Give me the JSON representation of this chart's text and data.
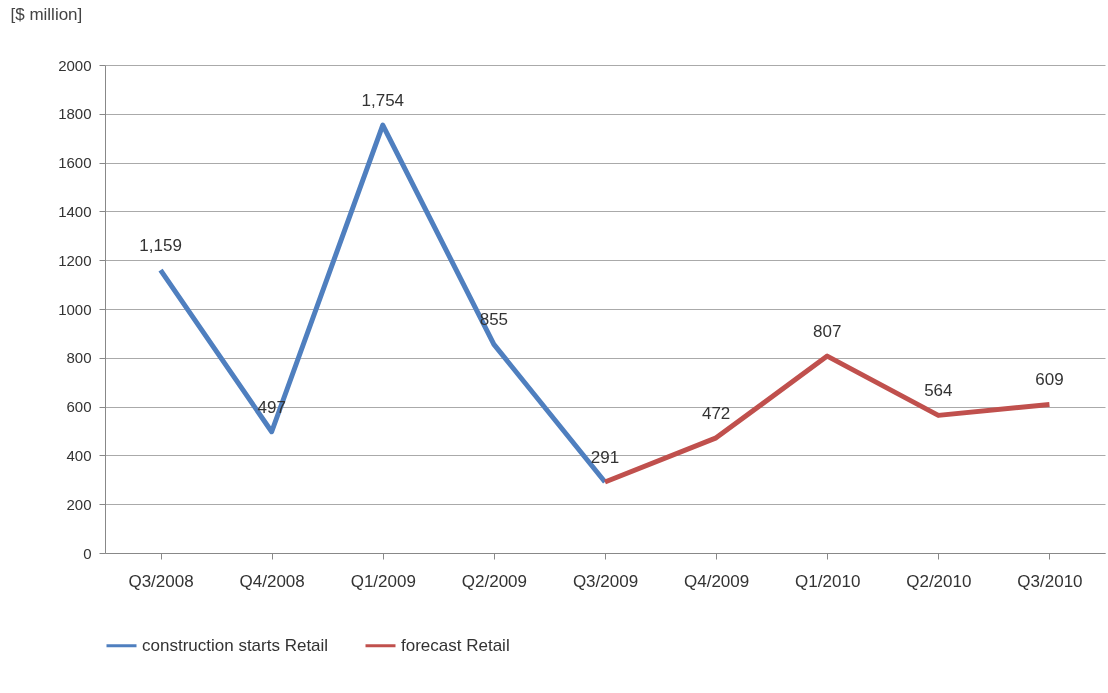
{
  "chart_data": {
    "type": "line",
    "ylabel": "[$ million]",
    "categories": [
      "Q3/2008",
      "Q4/2008",
      "Q1/2009",
      "Q2/2009",
      "Q3/2009",
      "Q4/2009",
      "Q1/2010",
      "Q2/2010",
      "Q3/2010"
    ],
    "series": [
      {
        "name": "construction starts Retail",
        "color": "#4f7fbf",
        "values": [
          1159,
          497,
          1754,
          855,
          291,
          null,
          null,
          null,
          null
        ],
        "value_labels": [
          "1,159",
          "497",
          "1,754",
          "855",
          "291",
          null,
          null,
          null,
          null
        ]
      },
      {
        "name": "forecast Retail",
        "color": "#c0504d",
        "values": [
          null,
          null,
          null,
          null,
          291,
          472,
          807,
          564,
          609
        ],
        "value_labels": [
          null,
          null,
          null,
          null,
          null,
          "472",
          "807",
          "564",
          "609"
        ]
      }
    ],
    "ylim": [
      0,
      2000
    ],
    "yticks": [
      0,
      200,
      400,
      600,
      800,
      1000,
      1200,
      1400,
      1600,
      1800,
      2000
    ],
    "grid": "y",
    "legend": "bottom",
    "marker": "none",
    "line_style": "solid"
  }
}
